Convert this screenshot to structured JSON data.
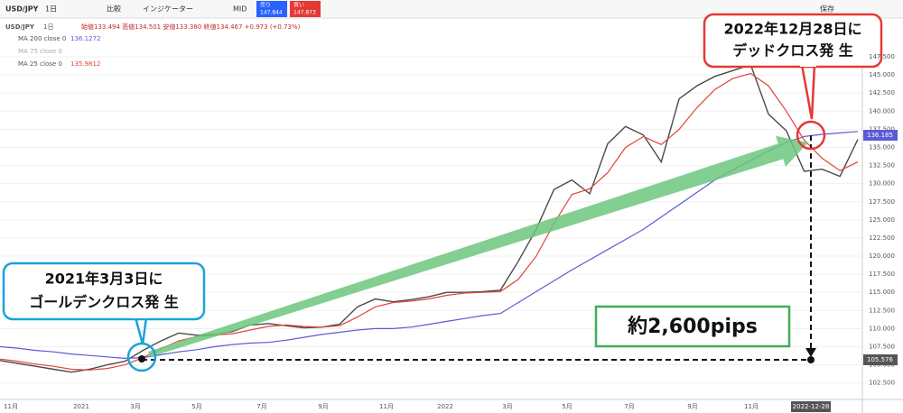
{
  "toolbar": {
    "symbol": "USD/JPY",
    "interval": "1日",
    "compare": "比較",
    "indicators": "インジケーター",
    "mid": "MID",
    "sell_label": "売り",
    "sell_price": "147.844",
    "buy_label": "買い",
    "buy_price": "147.873",
    "save": "保存"
  },
  "legend": {
    "symbol": "USD/JPY",
    "interval": "1日",
    "ohlc": "始値133.494 高値134.501 安値133.380 終値134.467 +0.973 (+0.73%)",
    "ma200_value": "136.1272",
    "ma75": "MA 75 close 0",
    "ma25_value": "135.9812"
  },
  "chart_data": {
    "type": "line",
    "series": [
      {
        "name": "USD/JPY",
        "color": "#4a4a4a",
        "values": [
          105.6,
          105.2,
          104.8,
          104.4,
          104,
          104.4,
          105,
          105.5,
          107,
          108.3,
          109.4,
          109.1,
          109.2,
          109.6,
          110.5,
          110.7,
          110.4,
          110.1,
          110.2,
          110.6,
          113,
          114.1,
          113.7,
          114,
          114.4,
          115,
          115,
          115.1,
          115.3,
          119.3,
          123.7,
          129.2,
          130.5,
          128.6,
          135.5,
          137.9,
          136.7,
          133,
          141.7,
          143.5,
          144.8,
          145.6,
          146.4,
          139.6,
          137.3,
          131.7,
          132,
          131,
          136.1
        ]
      },
      {
        "name": "MA 200 close 0",
        "color": "#5b5bd6",
        "values": [
          107.5,
          107.3,
          107,
          106.8,
          106.5,
          106.3,
          106.1,
          105.9,
          106,
          106.4,
          106.8,
          107.1,
          107.5,
          107.8,
          108,
          108.1,
          108.4,
          108.8,
          109.2,
          109.5,
          109.8,
          110,
          110,
          110.2,
          110.6,
          111,
          111.4,
          111.8,
          112.1,
          113.6,
          115.1,
          116.6,
          118.1,
          119.5,
          120.9,
          122.3,
          123.7,
          125.4,
          127.1,
          128.8,
          130.5,
          131.9,
          133.2,
          134.5,
          135.7,
          136.5,
          136.8,
          137,
          137.2
        ]
      },
      {
        "name": "MA 25 close 0",
        "color": "#e0453a",
        "values": [
          105.8,
          105.5,
          105.1,
          104.8,
          104.4,
          104.3,
          104.5,
          105,
          106,
          107.2,
          108.3,
          108.9,
          109.1,
          109.3,
          109.8,
          110.3,
          110.5,
          110.3,
          110.2,
          110.4,
          111.6,
          113,
          113.6,
          113.8,
          114.1,
          114.6,
          114.9,
          115,
          115.1,
          116.8,
          120,
          124.5,
          128.5,
          129.3,
          131.5,
          135,
          136.5,
          135.4,
          137.5,
          140.5,
          143,
          144.5,
          145.2,
          143.5,
          140,
          136,
          133.5,
          131.8,
          133
        ]
      }
    ],
    "ylim": [
      100.6,
      152.6
    ],
    "yticks": [
      {
        "value": 102.5,
        "label": "102.500"
      },
      {
        "value": 105,
        "label": "105.000"
      },
      {
        "value": 107.5,
        "label": "107.500"
      },
      {
        "value": 110,
        "label": "110.000"
      },
      {
        "value": 112.5,
        "label": "112.500"
      },
      {
        "value": 115,
        "label": "115.000"
      },
      {
        "value": 117.5,
        "label": "117.500"
      },
      {
        "value": 120,
        "label": "120.000"
      },
      {
        "value": 122.5,
        "label": "122.500"
      },
      {
        "value": 125,
        "label": "125.000"
      },
      {
        "value": 127.5,
        "label": "127.500"
      },
      {
        "value": 130,
        "label": "130.000"
      },
      {
        "value": 132.5,
        "label": "132.500"
      },
      {
        "value": 135,
        "label": "135.000"
      },
      {
        "value": 137.5,
        "label": "137.500"
      },
      {
        "value": 140,
        "label": "140.000"
      },
      {
        "value": 142.5,
        "label": "142.500"
      },
      {
        "value": 145,
        "label": "145.000"
      },
      {
        "value": 147.5,
        "label": "147.500"
      }
    ],
    "x_labels": [
      "11月",
      "2021",
      "3月",
      "5月",
      "7月",
      "9月",
      "11月",
      "2022",
      "3月",
      "5月",
      "7月",
      "9月",
      "11月"
    ],
    "grid": true,
    "price_tags": [
      "136.185",
      "105.576"
    ],
    "date_tag": "2022-12-28"
  },
  "annotations": {
    "golden_cross": [
      "2021年3月3日に",
      "ゴールデンクロス発 生"
    ],
    "dead_cross": [
      "2022年12月28日に",
      "デッドクロス発 生"
    ],
    "pips": "約2,600pips"
  }
}
